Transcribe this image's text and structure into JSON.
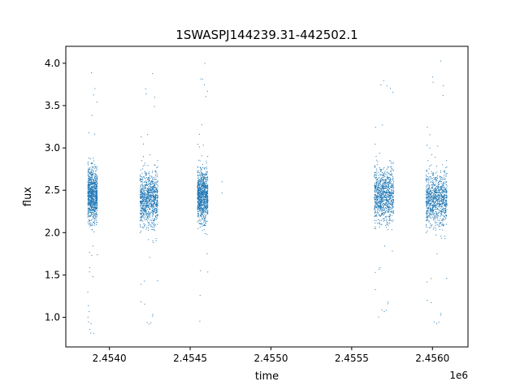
{
  "chart_data": {
    "type": "scatter",
    "title": "1SWASPJ144239.31-442502.1",
    "xlabel": "time",
    "ylabel": "flux",
    "x_offset_label": "1e6",
    "xlim": [
      2453730,
      2456220
    ],
    "ylim": [
      0.65,
      4.2
    ],
    "x_ticks": [
      2.454,
      2.4545,
      2.455,
      2.4555,
      2.456
    ],
    "x_tick_labels": [
      "2.4540",
      "2.4545",
      "2.4550",
      "2.4555",
      "2.4560"
    ],
    "y_ticks": [
      1.0,
      1.5,
      2.0,
      2.5,
      3.0,
      3.5,
      4.0
    ],
    "y_tick_labels": [
      "1.0",
      "1.5",
      "2.0",
      "2.5",
      "3.0",
      "3.5",
      "4.0"
    ],
    "grid": false,
    "marker_color": "#1f77b4",
    "observing_seasons": [
      {
        "x_start": 2453866,
        "x_end": 2453925,
        "flux_center": 2.45,
        "flux_min": 0.8,
        "flux_max": 4.05
      },
      {
        "x_start": 2454190,
        "x_end": 2454300,
        "flux_center": 2.4,
        "flux_min": 0.8,
        "flux_max": 3.9
      },
      {
        "x_start": 2454545,
        "x_end": 2454610,
        "flux_center": 2.45,
        "flux_min": 0.9,
        "flux_max": 4.02
      },
      {
        "x_start": 2455640,
        "x_end": 2455760,
        "flux_center": 2.45,
        "flux_min": 0.95,
        "flux_max": 4.0
      },
      {
        "x_start": 2455960,
        "x_end": 2456090,
        "flux_center": 2.4,
        "flux_min": 0.8,
        "flux_max": 4.05
      }
    ],
    "isolated_points": [
      {
        "x": 2454697,
        "y": 2.47
      },
      {
        "x": 2454697,
        "y": 2.6
      }
    ]
  }
}
